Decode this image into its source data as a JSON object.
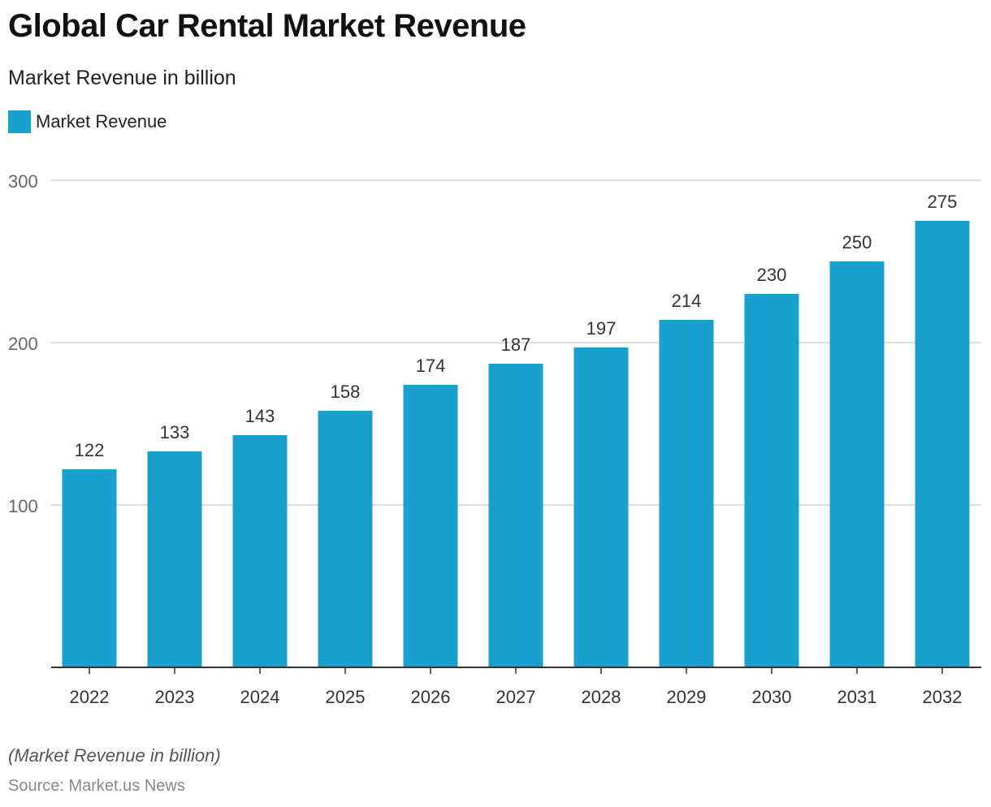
{
  "header": {
    "title": "Global Car Rental Market Revenue",
    "subtitle": "Market Revenue in billion"
  },
  "legend": {
    "label": "Market Revenue",
    "color": "#1aa0cc"
  },
  "footer": {
    "note": "(Market Revenue in billion)",
    "source": "Source: Market.us News"
  },
  "chart_data": {
    "type": "bar",
    "title": "Global Car Rental Market Revenue",
    "subtitle": "Market Revenue in billion",
    "xlabel": "",
    "ylabel": "",
    "categories": [
      "2022",
      "2023",
      "2024",
      "2025",
      "2026",
      "2027",
      "2028",
      "2029",
      "2030",
      "2031",
      "2032"
    ],
    "series": [
      {
        "name": "Market Revenue",
        "values": [
          122,
          133,
          143,
          158,
          174,
          187,
          197,
          214,
          230,
          250,
          275
        ],
        "color": "#1aa0cc"
      }
    ],
    "ylim": [
      0,
      300
    ],
    "yticks": [
      100,
      200,
      300
    ],
    "grid": true,
    "legend_position": "top-left",
    "data_labels": true
  }
}
